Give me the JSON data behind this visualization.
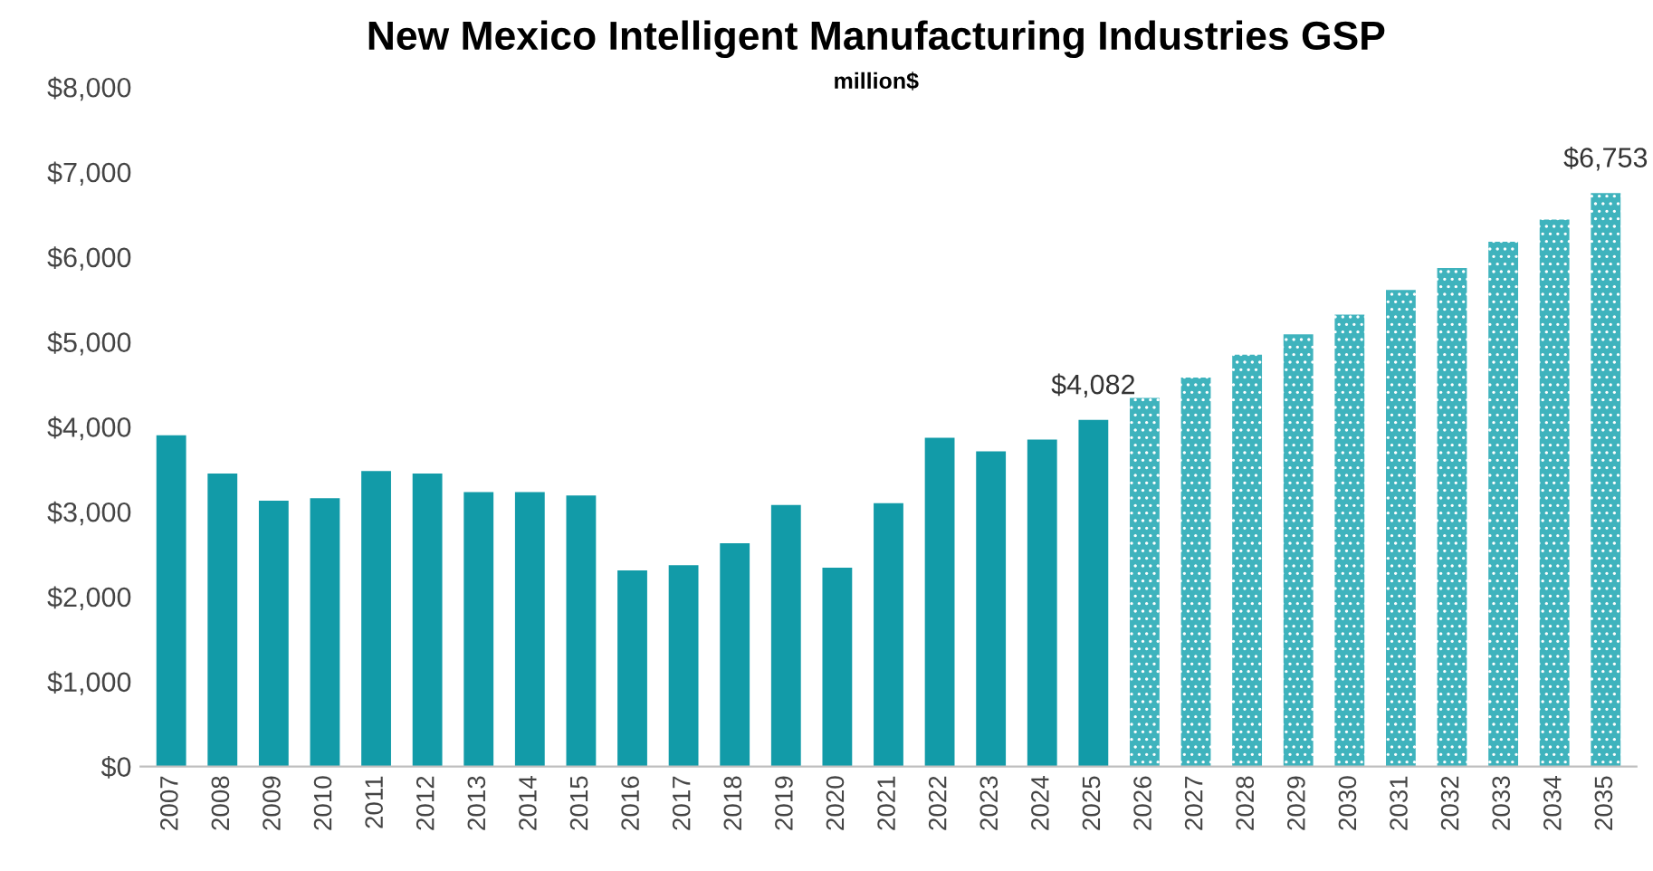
{
  "chart_data": {
    "type": "bar",
    "title": "New Mexico Intelligent Manufacturing Industries GSP",
    "subtitle": "million$",
    "categories": [
      "2007",
      "2008",
      "2009",
      "2010",
      "2011",
      "2012",
      "2013",
      "2014",
      "2015",
      "2016",
      "2017",
      "2018",
      "2019",
      "2020",
      "2021",
      "2022",
      "2023",
      "2024",
      "2025",
      "2026",
      "2027",
      "2028",
      "2029",
      "2030",
      "2031",
      "2032",
      "2033",
      "2034",
      "2035"
    ],
    "series": [
      {
        "color": "#129ba8",
        "values": [
          3900,
          3450,
          3130,
          3160,
          3480,
          3450,
          3230,
          3230,
          3190,
          2310,
          2370,
          2630,
          3080,
          2340,
          3100,
          3870,
          3710,
          3850,
          4082,
          null,
          null,
          null,
          null,
          null,
          null,
          null,
          null,
          null,
          null
        ],
        "value_labels": [
          null,
          null,
          null,
          null,
          null,
          null,
          null,
          null,
          null,
          null,
          null,
          null,
          null,
          null,
          null,
          null,
          null,
          null,
          "$4,082",
          null,
          null,
          null,
          null,
          null,
          null,
          null,
          null,
          null,
          null
        ]
      },
      {
        "color": "#3fb3bd",
        "values": [
          null,
          null,
          null,
          null,
          null,
          null,
          null,
          null,
          null,
          null,
          null,
          null,
          null,
          null,
          null,
          null,
          null,
          null,
          null,
          4340,
          4580,
          4850,
          5090,
          5320,
          5610,
          5870,
          6180,
          6440,
          6753
        ],
        "value_labels": [
          null,
          null,
          null,
          null,
          null,
          null,
          null,
          null,
          null,
          null,
          null,
          null,
          null,
          null,
          null,
          null,
          null,
          null,
          null,
          null,
          null,
          null,
          null,
          null,
          null,
          null,
          null,
          null,
          "$6,753"
        ]
      }
    ],
    "ylim": [
      0,
      8000
    ],
    "yticks": [
      {
        "value": 0,
        "label": "$0"
      },
      {
        "value": 1000,
        "label": "$1,000"
      },
      {
        "value": 2000,
        "label": "$2,000"
      },
      {
        "value": 3000,
        "label": "$3,000"
      },
      {
        "value": 4000,
        "label": "$4,000"
      },
      {
        "value": 5000,
        "label": "$5,000"
      },
      {
        "value": 6000,
        "label": "$6,000"
      },
      {
        "value": 7000,
        "label": "$7,000"
      },
      {
        "value": 8000,
        "label": "$8,000"
      }
    ],
    "grid": false,
    "legend": false
  }
}
